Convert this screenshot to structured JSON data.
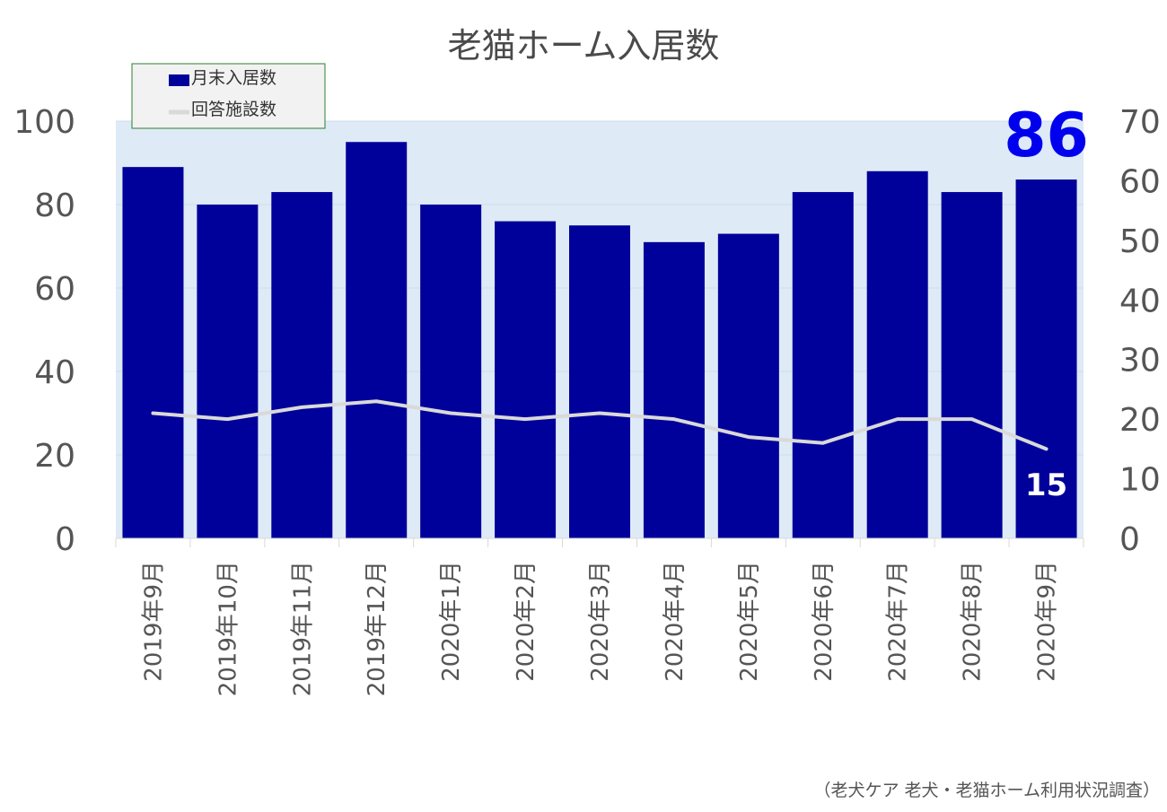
{
  "chart_data": {
    "type": "bar",
    "title": "老猫ホーム入居数",
    "categories": [
      "2019年9月",
      "2019年10月",
      "2019年11月",
      "2019年12月",
      "2020年1月",
      "2020年2月",
      "2020年3月",
      "2020年4月",
      "2020年5月",
      "2020年6月",
      "2020年7月",
      "2020年8月",
      "2020年9月"
    ],
    "series": [
      {
        "name": "月末入居数",
        "type": "bar",
        "axis": "left",
        "color": "#00009a",
        "values": [
          89,
          80,
          83,
          95,
          80,
          76,
          75,
          71,
          73,
          83,
          88,
          83,
          86
        ]
      },
      {
        "name": "回答施設数",
        "type": "line",
        "axis": "right",
        "color": "#d9d9d9",
        "values": [
          21,
          20,
          22,
          23,
          21,
          20,
          21,
          20,
          17,
          16,
          20,
          20,
          15
        ]
      }
    ],
    "y_left": {
      "ylim": [
        0,
        100
      ],
      "ticks": [
        "0",
        "20",
        "40",
        "60",
        "80",
        "100"
      ]
    },
    "y_right": {
      "ylim": [
        0,
        70
      ],
      "ticks": [
        "0",
        "10",
        "20",
        "30",
        "40",
        "50",
        "60",
        "70"
      ]
    },
    "annotations": {
      "last_bar_value": "86",
      "last_line_value": "15"
    },
    "legend_position": "top-left",
    "plot_background": "#deeaf6",
    "grid": true
  },
  "source_note": "（老犬ケア 老犬・老猫ホーム利用状況調査）"
}
